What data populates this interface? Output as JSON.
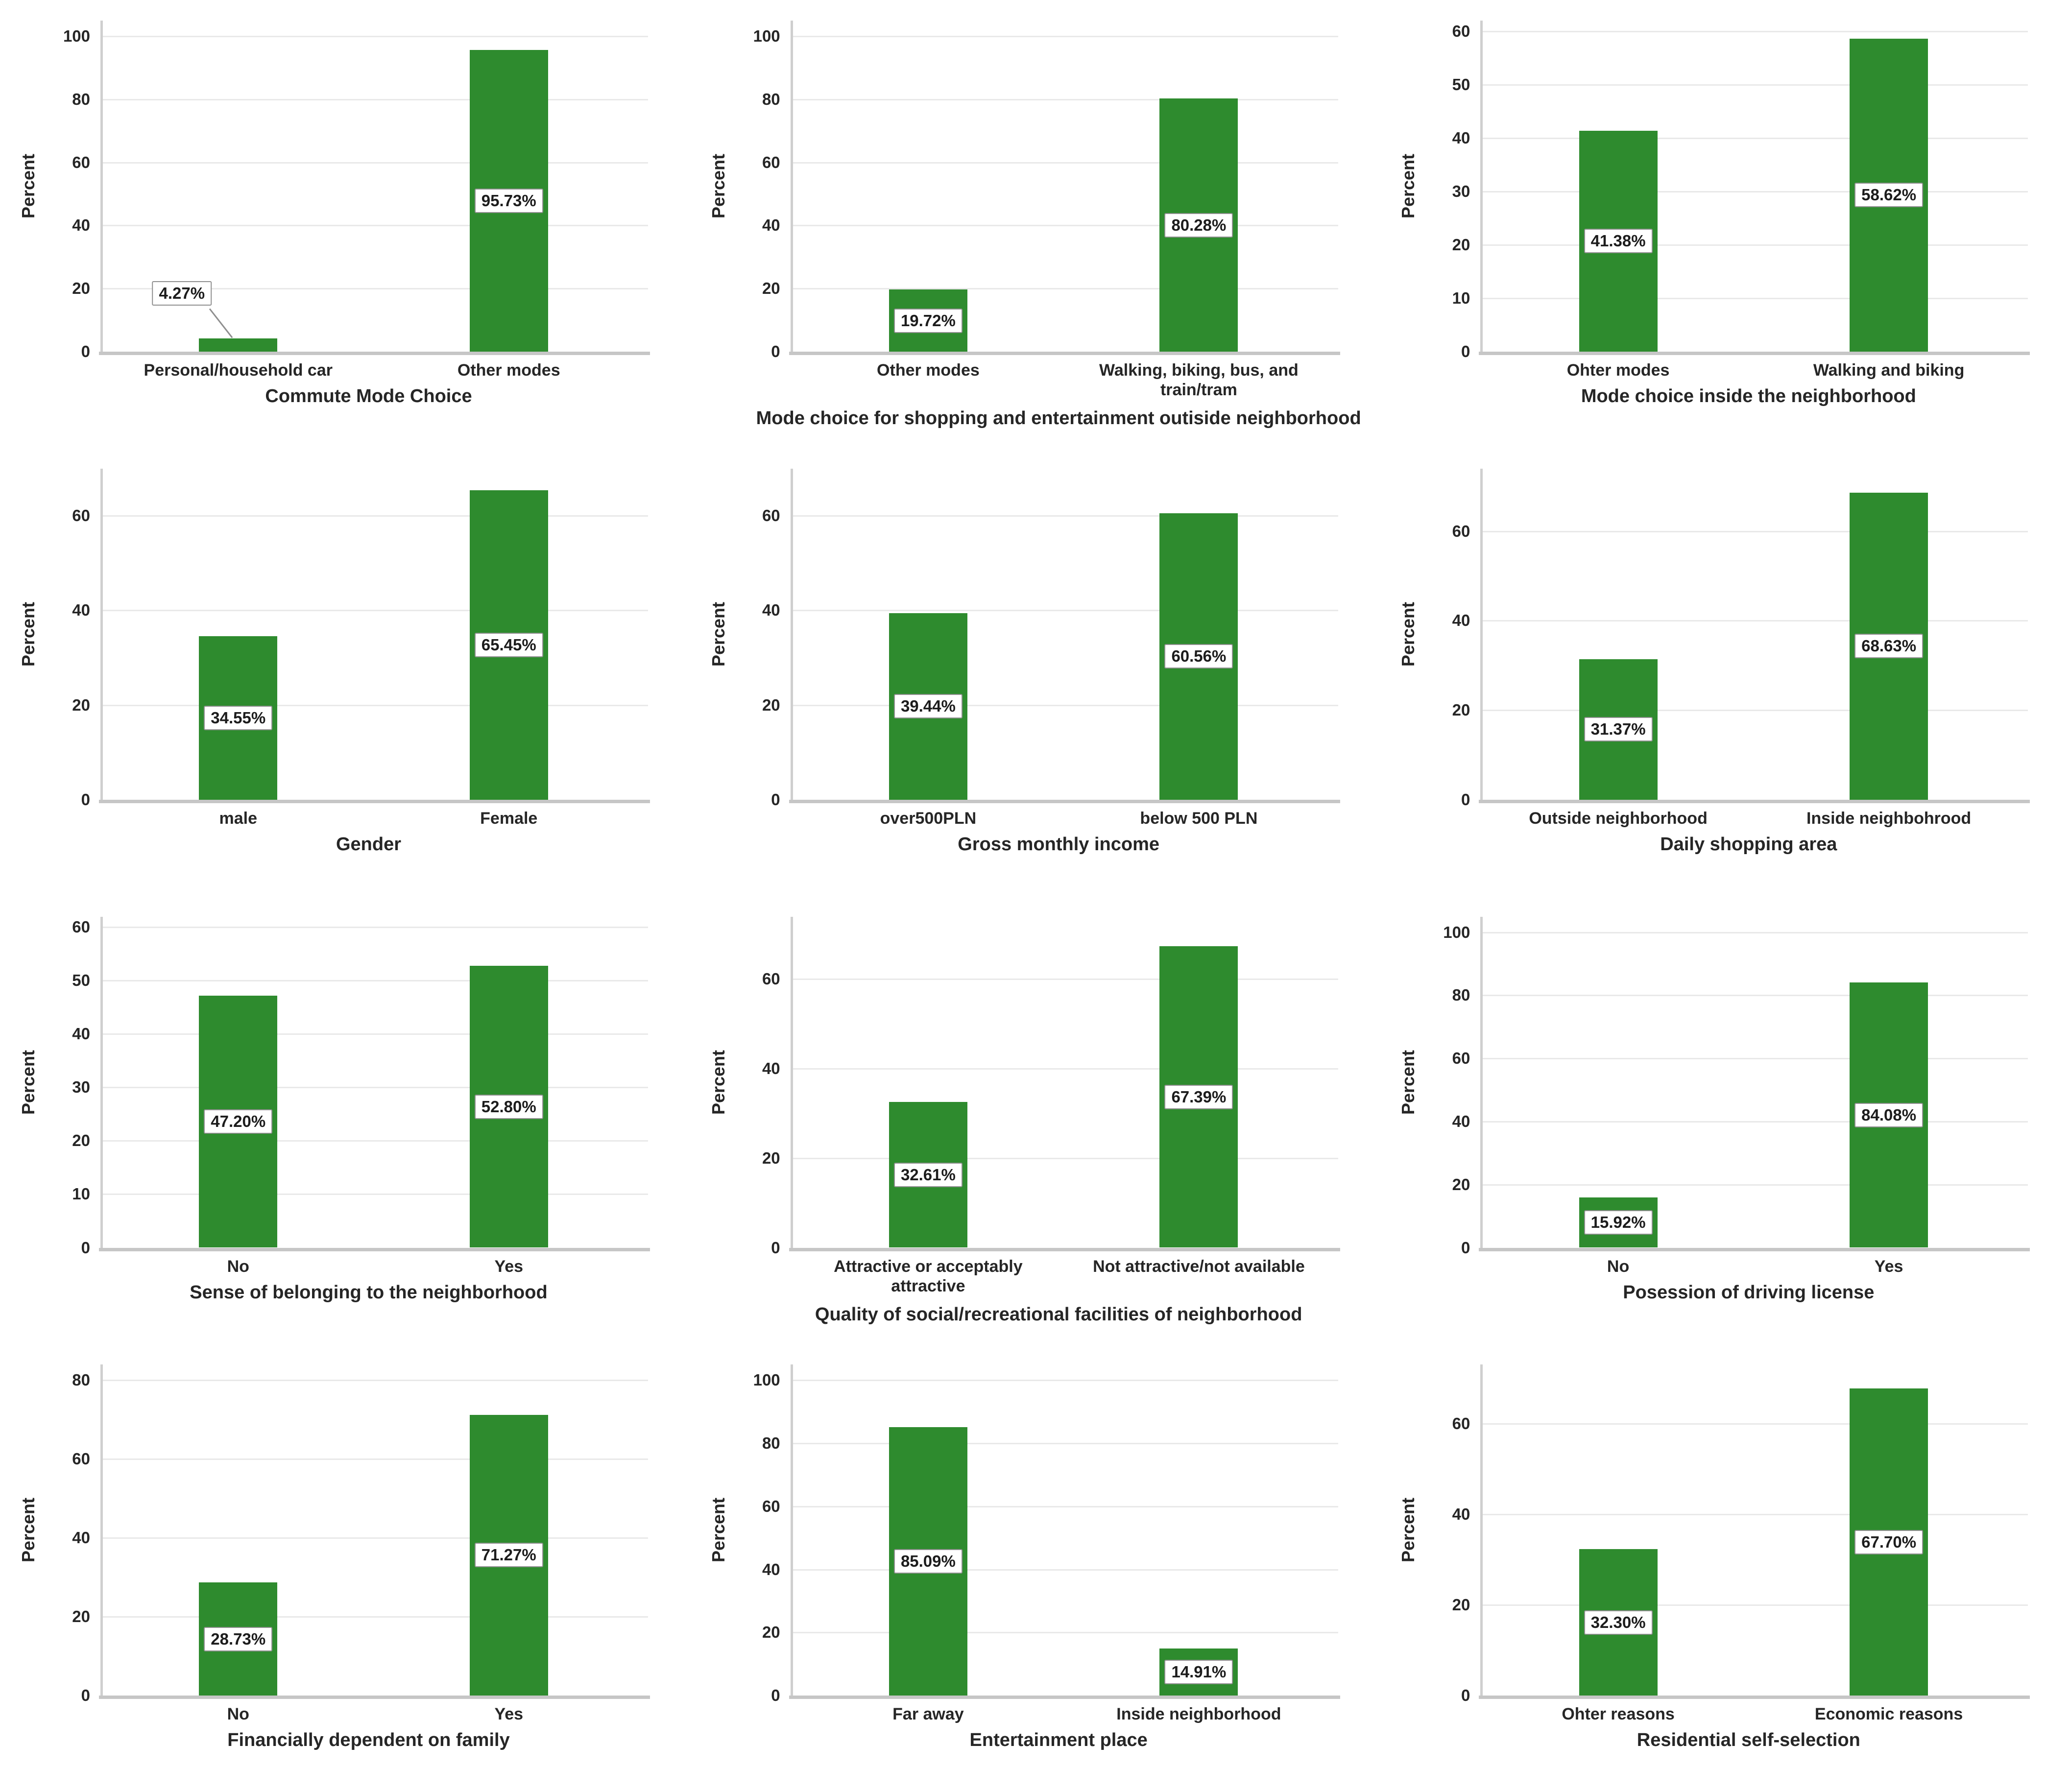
{
  "style": {
    "background": "#ffffff",
    "bar_color": "#2E8B2E",
    "grid_color": "#e9e9e9",
    "axis_color": "#c6c6c6",
    "label_box_border": "#909090",
    "text_color": "#262626"
  },
  "y_axis_title": "Percent",
  "chart_data": [
    {
      "type": "bar",
      "title": "Commute Mode Choice",
      "ylabel": "Percent",
      "yticks": [
        0,
        20,
        40,
        60,
        80,
        100
      ],
      "ylim": [
        0,
        105
      ],
      "grid": true,
      "categories": [
        "Personal/household car",
        "Other modes"
      ],
      "values": [
        4.27,
        95.73
      ],
      "value_labels": [
        "4.27%",
        "95.73%"
      ],
      "label_style": [
        "callout",
        "inline"
      ]
    },
    {
      "type": "bar",
      "title": "Mode choice for shopping and entertainment outiside neighborhood",
      "ylabel": "Percent",
      "yticks": [
        0,
        20,
        40,
        60,
        80,
        100
      ],
      "ylim": [
        0,
        105
      ],
      "grid": true,
      "categories": [
        "Other modes",
        "Walking, biking, bus, and train/tram"
      ],
      "values": [
        19.72,
        80.28
      ],
      "value_labels": [
        "19.72%",
        "80.28%"
      ],
      "label_style": [
        "inline",
        "inline"
      ]
    },
    {
      "type": "bar",
      "title": "Mode choice inside the neighborhood",
      "ylabel": "Percent",
      "yticks": [
        0,
        10,
        20,
        30,
        40,
        50,
        60
      ],
      "ylim": [
        0,
        62
      ],
      "grid": true,
      "categories": [
        "Ohter modes",
        "Walking and biking"
      ],
      "values": [
        41.38,
        58.62
      ],
      "value_labels": [
        "41.38%",
        "58.62%"
      ],
      "label_style": [
        "inline",
        "inline"
      ]
    },
    {
      "type": "bar",
      "title": "Gender",
      "ylabel": "Percent",
      "yticks": [
        0,
        20,
        40,
        60
      ],
      "ylim": [
        0,
        70
      ],
      "grid": true,
      "categories": [
        "male",
        "Female"
      ],
      "values": [
        34.55,
        65.45
      ],
      "value_labels": [
        "34.55%",
        "65.45%"
      ],
      "label_style": [
        "inline",
        "inline"
      ]
    },
    {
      "type": "bar",
      "title": "Gross monthly income",
      "ylabel": "Percent",
      "yticks": [
        0,
        20,
        40,
        60
      ],
      "ylim": [
        0,
        70
      ],
      "grid": true,
      "categories": [
        "over500PLN",
        "below 500 PLN"
      ],
      "values": [
        39.44,
        60.56
      ],
      "value_labels": [
        "39.44%",
        "60.56%"
      ],
      "label_style": [
        "inline",
        "inline"
      ]
    },
    {
      "type": "bar",
      "title": "Daily shopping area",
      "ylabel": "Percent",
      "yticks": [
        0,
        20,
        40,
        60
      ],
      "ylim": [
        0,
        74
      ],
      "grid": true,
      "categories": [
        "Outside neighborhood",
        "Inside neighbohrood"
      ],
      "values": [
        31.37,
        68.63
      ],
      "value_labels": [
        "31.37%",
        "68.63%"
      ],
      "label_style": [
        "inline",
        "inline"
      ]
    },
    {
      "type": "bar",
      "title": "Sense of belonging to the neighborhood",
      "ylabel": "Percent",
      "yticks": [
        0,
        10,
        20,
        30,
        40,
        50,
        60
      ],
      "ylim": [
        0,
        62
      ],
      "grid": true,
      "categories": [
        "No",
        "Yes"
      ],
      "values": [
        47.2,
        52.8
      ],
      "value_labels": [
        "47.20%",
        "52.80%"
      ],
      "label_style": [
        "inline",
        "inline"
      ]
    },
    {
      "type": "bar",
      "title": "Quality of social/recreational facilities of neighborhood",
      "ylabel": "Percent",
      "yticks": [
        0,
        20,
        40,
        60
      ],
      "ylim": [
        0,
        74
      ],
      "grid": true,
      "categories": [
        "Attractive or acceptably attractive",
        "Not attractive/not available"
      ],
      "values": [
        32.61,
        67.39
      ],
      "value_labels": [
        "32.61%",
        "67.39%"
      ],
      "label_style": [
        "inline",
        "inline"
      ]
    },
    {
      "type": "bar",
      "title": "Posession of driving license",
      "ylabel": "Percent",
      "yticks": [
        0,
        20,
        40,
        60,
        80,
        100
      ],
      "ylim": [
        0,
        105
      ],
      "grid": true,
      "categories": [
        "No",
        "Yes"
      ],
      "values": [
        15.92,
        84.08
      ],
      "value_labels": [
        "15.92%",
        "84.08%"
      ],
      "label_style": [
        "inline",
        "inline"
      ]
    },
    {
      "type": "bar",
      "title": "Financially dependent on family",
      "ylabel": "Percent",
      "yticks": [
        0,
        20,
        40,
        60,
        80
      ],
      "ylim": [
        0,
        84
      ],
      "grid": true,
      "categories": [
        "No",
        "Yes"
      ],
      "values": [
        28.73,
        71.27
      ],
      "value_labels": [
        "28.73%",
        "71.27%"
      ],
      "label_style": [
        "inline",
        "inline"
      ]
    },
    {
      "type": "bar",
      "title": "Entertainment place",
      "ylabel": "Percent",
      "yticks": [
        0,
        20,
        40,
        60,
        80,
        100
      ],
      "ylim": [
        0,
        105
      ],
      "grid": true,
      "categories": [
        "Far away",
        "Inside neighborhood"
      ],
      "values": [
        85.09,
        14.91
      ],
      "value_labels": [
        "85.09%",
        "14.91%"
      ],
      "label_style": [
        "inline",
        "inline"
      ]
    },
    {
      "type": "bar",
      "title": "Residential self-selection",
      "ylabel": "Percent",
      "yticks": [
        0,
        20,
        40,
        60
      ],
      "ylim": [
        0,
        73
      ],
      "grid": true,
      "categories": [
        "Ohter reasons",
        "Economic reasons"
      ],
      "values": [
        32.3,
        67.7
      ],
      "value_labels": [
        "32.30%",
        "67.70%"
      ],
      "label_style": [
        "inline",
        "inline"
      ]
    }
  ]
}
